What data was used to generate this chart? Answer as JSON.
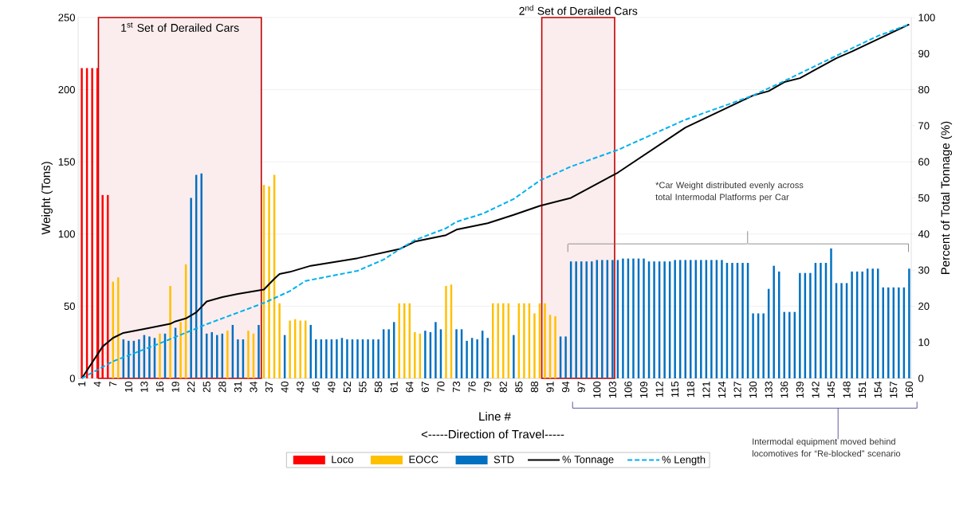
{
  "chart_data": {
    "type": "bar",
    "xlabel": "Line #",
    "ylabel": "Weight (Tons)",
    "y2label": "Percent of Total Tonnage (%)",
    "x": [
      1,
      2,
      3,
      4,
      5,
      6,
      7,
      8,
      9,
      10,
      11,
      12,
      13,
      14,
      15,
      16,
      17,
      18,
      19,
      20,
      21,
      22,
      23,
      24,
      25,
      26,
      27,
      28,
      29,
      30,
      31,
      32,
      33,
      34,
      35,
      36,
      37,
      38,
      39,
      40,
      41,
      42,
      43,
      44,
      45,
      46,
      47,
      48,
      49,
      50,
      51,
      52,
      53,
      54,
      55,
      56,
      57,
      58,
      59,
      60,
      61,
      62,
      63,
      64,
      65,
      66,
      67,
      68,
      69,
      70,
      71,
      72,
      73,
      74,
      75,
      76,
      77,
      78,
      79,
      80,
      81,
      82,
      83,
      84,
      85,
      86,
      87,
      88,
      89,
      90,
      91,
      92,
      93,
      94,
      95,
      96,
      97,
      98,
      99,
      100,
      101,
      102,
      103,
      104,
      105,
      106,
      107,
      108,
      109,
      110,
      111,
      112,
      113,
      114,
      115,
      116,
      117,
      118,
      119,
      120,
      121,
      122,
      123,
      124,
      125,
      126,
      127,
      128,
      129,
      130,
      131,
      132,
      133,
      134,
      135,
      136,
      137,
      138,
      139,
      140,
      141,
      142,
      143,
      144,
      145,
      146,
      147,
      148,
      149,
      150,
      151,
      152,
      153,
      154,
      155,
      156,
      157,
      158,
      159,
      160
    ],
    "xlim": [
      0.3,
      160.4
    ],
    "xticks": [
      1,
      4,
      7,
      10,
      13,
      16,
      19,
      22,
      25,
      28,
      31,
      34,
      37,
      40,
      43,
      46,
      49,
      52,
      55,
      58,
      61,
      64,
      67,
      70,
      73,
      76,
      79,
      82,
      85,
      88,
      91,
      94,
      97,
      100,
      103,
      106,
      109,
      112,
      115,
      118,
      121,
      124,
      127,
      130,
      133,
      136,
      139,
      142,
      145,
      148,
      151,
      154,
      157,
      160
    ],
    "ylim": [
      0,
      250
    ],
    "yticks": [
      0,
      50,
      100,
      150,
      200,
      250
    ],
    "y2lim": [
      0,
      100
    ],
    "y2ticks": [
      0,
      10,
      20,
      30,
      40,
      50,
      60,
      70,
      80,
      90,
      100
    ],
    "grid": "y",
    "legend": "bottom",
    "series": [
      {
        "name": "Loco",
        "color": "#ff0000",
        "values": [
          215,
          215,
          215,
          215,
          127,
          127,
          null,
          null,
          null,
          null,
          null,
          null,
          null,
          null,
          null,
          null,
          null,
          null,
          null,
          null,
          null,
          null,
          null,
          null,
          null,
          null,
          null,
          null,
          null,
          null,
          null,
          null,
          null,
          null,
          null,
          null,
          null,
          null,
          null,
          null,
          null,
          null,
          null,
          null,
          null,
          null,
          null,
          null,
          null,
          null,
          null,
          null,
          null,
          null,
          null,
          null,
          null,
          null,
          null,
          null,
          null,
          null,
          null,
          null,
          null,
          null,
          null,
          null,
          null,
          null,
          null,
          null,
          null,
          null,
          null,
          null,
          null,
          null,
          null,
          null,
          null,
          null,
          null,
          null,
          null,
          null,
          null,
          null,
          null,
          null,
          null,
          null,
          null,
          null,
          null,
          null,
          null,
          null,
          null,
          null,
          null,
          null,
          null,
          null,
          null,
          null,
          null,
          null,
          null,
          null,
          null,
          null,
          null,
          null,
          null,
          null,
          null,
          null,
          null,
          null,
          null,
          null,
          null,
          null,
          null,
          null,
          null,
          null,
          null,
          null,
          null,
          null,
          null,
          null,
          null,
          null,
          null,
          null,
          null,
          null,
          null,
          null,
          null,
          null,
          null,
          null,
          null,
          null,
          null,
          null,
          null,
          null,
          null,
          null,
          null,
          null,
          null,
          null,
          null,
          null
        ]
      },
      {
        "name": "EOCC",
        "color": "#ffc000",
        "values": [
          null,
          null,
          null,
          null,
          null,
          null,
          67,
          70,
          null,
          null,
          null,
          null,
          null,
          null,
          null,
          31,
          null,
          64,
          null,
          39,
          79,
          null,
          null,
          null,
          null,
          null,
          null,
          null,
          33,
          null,
          null,
          null,
          33,
          31,
          null,
          134,
          133,
          141,
          52,
          null,
          40,
          41,
          40,
          40,
          null,
          null,
          null,
          null,
          null,
          null,
          null,
          null,
          null,
          null,
          null,
          null,
          null,
          null,
          null,
          null,
          null,
          52,
          52,
          52,
          32,
          31,
          null,
          null,
          null,
          null,
          64,
          65,
          null,
          null,
          null,
          null,
          null,
          null,
          null,
          52,
          52,
          52,
          52,
          null,
          52,
          52,
          52,
          45,
          52,
          52,
          44,
          43,
          null,
          null,
          null,
          null,
          null,
          null,
          null,
          null,
          null,
          null,
          null,
          null,
          null,
          null,
          null,
          null,
          null,
          null,
          null,
          null,
          null,
          null,
          null,
          null,
          null,
          null,
          null,
          null,
          null,
          null,
          null,
          null,
          null,
          null,
          null,
          null,
          null,
          null,
          null,
          null,
          null,
          null,
          null,
          null,
          null,
          null,
          null,
          null,
          null,
          null,
          null,
          null,
          null,
          null,
          null,
          null,
          null,
          null,
          null,
          null,
          null,
          null,
          null,
          null,
          null,
          null,
          null,
          null
        ]
      },
      {
        "name": "STD",
        "color": "#0070c0",
        "values": [
          null,
          null,
          null,
          null,
          null,
          null,
          null,
          null,
          27,
          26,
          26,
          27,
          30,
          29,
          28,
          null,
          31,
          null,
          35,
          null,
          null,
          125,
          141,
          142,
          31,
          32,
          30,
          31,
          null,
          37,
          27,
          27,
          null,
          null,
          37,
          null,
          null,
          null,
          null,
          30,
          null,
          null,
          null,
          null,
          37,
          27,
          27,
          27,
          27,
          27,
          28,
          27,
          27,
          27,
          27,
          27,
          27,
          27,
          34,
          34,
          39,
          null,
          null,
          null,
          null,
          null,
          33,
          32,
          39,
          34,
          null,
          null,
          34,
          34,
          26,
          28,
          27,
          33,
          28,
          null,
          null,
          null,
          null,
          30,
          null,
          null,
          null,
          null,
          null,
          null,
          null,
          null,
          29,
          29,
          81,
          81,
          81,
          81,
          81,
          82,
          82,
          82,
          82,
          82,
          83,
          83,
          83,
          83,
          83,
          81,
          81,
          81,
          81,
          81,
          82,
          82,
          82,
          82,
          82,
          82,
          82,
          82,
          82,
          82,
          80,
          80,
          80,
          80,
          80,
          45,
          45,
          45,
          62,
          78,
          74,
          46,
          46,
          46,
          73,
          73,
          73,
          80,
          80,
          80,
          90,
          66,
          66,
          66,
          74,
          74,
          74,
          76,
          76,
          76,
          63,
          63,
          63,
          63,
          63,
          76
        ]
      },
      {
        "name": "% Tonnage",
        "type": "line",
        "axis": "y2",
        "color": "#000000",
        "line_style": "solid",
        "x": [
          1,
          5,
          7,
          9,
          13,
          18,
          19,
          21,
          23,
          25,
          28,
          31,
          36,
          38,
          39,
          41,
          45,
          54,
          62,
          65,
          71,
          73,
          79,
          84,
          89,
          95,
          104,
          117,
          130,
          133,
          136,
          139,
          146,
          149,
          160
        ],
        "values": [
          0,
          8.8,
          11.2,
          12.6,
          13.7,
          15.1,
          15.8,
          16.6,
          18.3,
          21.3,
          22.5,
          23.4,
          24.6,
          27.6,
          28.9,
          29.5,
          31.2,
          33.3,
          35.8,
          37.9,
          39.7,
          41.2,
          43,
          45.3,
          47.8,
          50,
          57,
          69.5,
          78.4,
          79.6,
          82.1,
          83.2,
          88.7,
          90.6,
          98.1
        ]
      },
      {
        "name": "% Length",
        "type": "line",
        "axis": "y2",
        "color": "#00b0f0",
        "line_style": "dashed",
        "x": [
          1,
          7,
          16,
          25,
          36,
          41,
          44,
          54,
          59,
          62,
          65,
          71,
          73,
          78,
          84,
          89,
          95,
          104,
          117,
          125,
          130,
          136,
          146,
          154,
          160
        ],
        "values": [
          0,
          4.7,
          9.7,
          15,
          20.9,
          24.2,
          27,
          29.8,
          32.9,
          35.7,
          38.3,
          41.6,
          43.4,
          45.6,
          49.7,
          54.8,
          58.7,
          63.3,
          71.7,
          75.8,
          78.4,
          82.4,
          89.4,
          94.9,
          98.1
        ]
      }
    ],
    "bands": [
      {
        "axis": "x",
        "from": 4.2,
        "to": 35.5,
        "label": "1$^{st}$ Set of Derailed Cars",
        "color": "#c00000"
      },
      {
        "axis": "x",
        "from": 89.4,
        "to": 103.4,
        "label": "2$^{nd}$ Set of Derailed Cars",
        "color": "#c00000"
      }
    ],
    "annotations": [
      "<-----Direction of Travel-----",
      "*Car Weight distributed evenly across total Intermodal Platforms per Car",
      "Intermodal equipment moved behind locomotives for “Re-blocked” scenario"
    ]
  }
}
